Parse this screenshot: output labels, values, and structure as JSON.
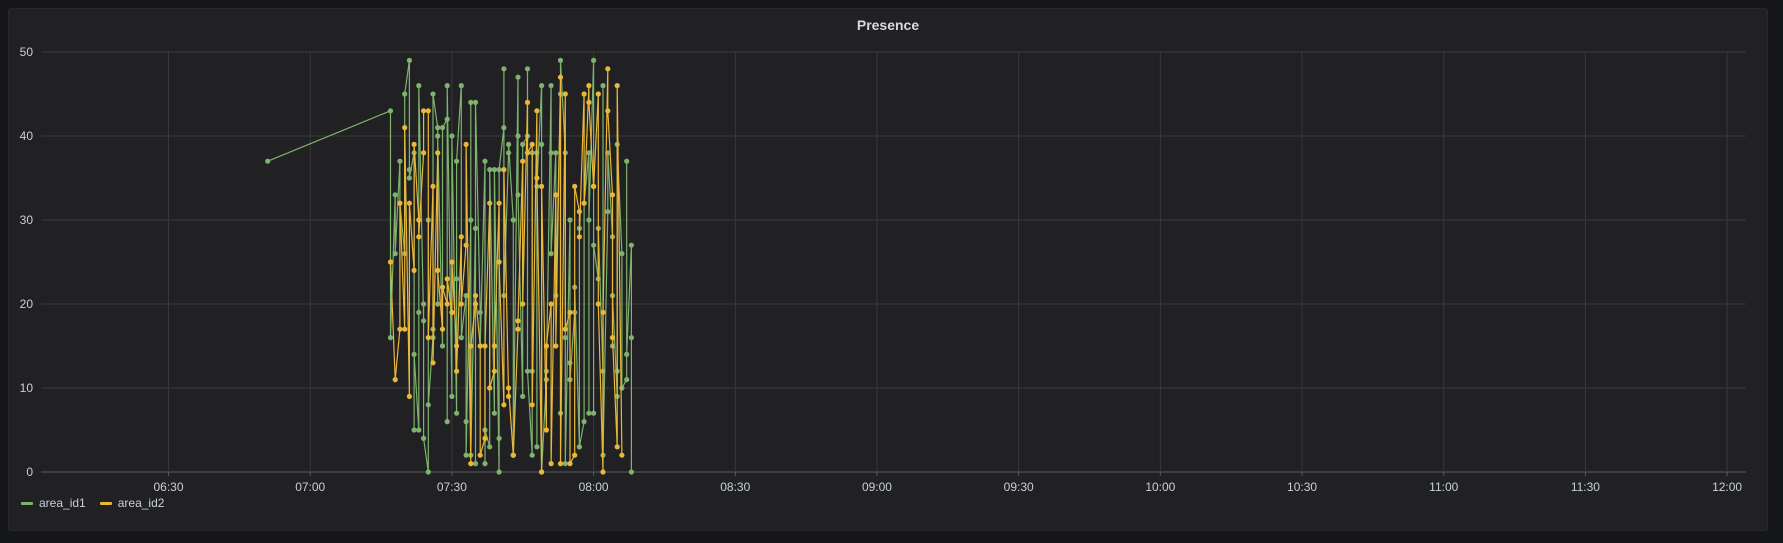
{
  "chart_data": {
    "type": "line",
    "title": "Presence",
    "xlabel": "",
    "ylabel": "",
    "ylim": [
      0,
      50
    ],
    "xlim": [
      "06:03",
      "12:04"
    ],
    "x_ticks": [
      "06:30",
      "07:00",
      "07:30",
      "08:00",
      "08:30",
      "09:00",
      "09:30",
      "10:00",
      "10:30",
      "11:00",
      "11:30",
      "12:00"
    ],
    "y_ticks": [
      "0",
      "10",
      "20",
      "30",
      "40",
      "50"
    ],
    "grid": true,
    "legend_position": "bottom-left",
    "series": [
      {
        "name": "area_id1",
        "color": "#7eb26d",
        "points": [
          [
            "06:51",
            37
          ],
          [
            "07:17",
            43
          ],
          [
            "07:17",
            16
          ],
          [
            "07:18",
            33
          ],
          [
            "07:18",
            26
          ],
          [
            "07:19",
            37
          ],
          [
            "07:19",
            32
          ],
          [
            "07:20",
            26
          ],
          [
            "07:20",
            45
          ],
          [
            "07:21",
            49
          ],
          [
            "07:21",
            36
          ],
          [
            "07:21",
            35
          ],
          [
            "07:22",
            38
          ],
          [
            "07:22",
            5
          ],
          [
            "07:22",
            14
          ],
          [
            "07:23",
            5
          ],
          [
            "07:23",
            19
          ],
          [
            "07:23",
            46
          ],
          [
            "07:24",
            18
          ],
          [
            "07:24",
            20
          ],
          [
            "07:24",
            4
          ],
          [
            "07:25",
            0
          ],
          [
            "07:25",
            30
          ],
          [
            "07:25",
            8
          ],
          [
            "07:26",
            16
          ],
          [
            "07:26",
            17
          ],
          [
            "07:26",
            45
          ],
          [
            "07:27",
            41
          ],
          [
            "07:27",
            20
          ],
          [
            "07:27",
            40
          ],
          [
            "07:28",
            15
          ],
          [
            "07:28",
            41
          ],
          [
            "07:29",
            42
          ],
          [
            "07:29",
            6
          ],
          [
            "07:29",
            46
          ],
          [
            "07:30",
            9
          ],
          [
            "07:30",
            40
          ],
          [
            "07:31",
            7
          ],
          [
            "07:31",
            23
          ],
          [
            "07:31",
            37
          ],
          [
            "07:32",
            46
          ],
          [
            "07:32",
            16
          ],
          [
            "07:33",
            21
          ],
          [
            "07:33",
            6
          ],
          [
            "07:33",
            2
          ],
          [
            "07:34",
            30
          ],
          [
            "07:34",
            44
          ],
          [
            "07:34",
            2
          ],
          [
            "07:35",
            29
          ],
          [
            "07:35",
            1
          ],
          [
            "07:35",
            44
          ],
          [
            "07:36",
            19
          ],
          [
            "07:36",
            15
          ],
          [
            "07:37",
            37
          ],
          [
            "07:37",
            1
          ],
          [
            "07:37",
            5
          ],
          [
            "07:38",
            3
          ],
          [
            "07:38",
            10
          ],
          [
            "07:38",
            36
          ],
          [
            "07:39",
            7
          ],
          [
            "07:39",
            36
          ],
          [
            "07:40",
            0
          ],
          [
            "07:40",
            4
          ],
          [
            "07:40",
            36
          ],
          [
            "07:41",
            41
          ],
          [
            "07:41",
            48
          ],
          [
            "07:41",
            21
          ],
          [
            "07:42",
            38
          ],
          [
            "07:42",
            39
          ],
          [
            "07:43",
            30
          ],
          [
            "07:43",
            2
          ],
          [
            "07:44",
            47
          ],
          [
            "07:44",
            40
          ],
          [
            "07:44",
            33
          ],
          [
            "07:45",
            9
          ],
          [
            "07:45",
            39
          ],
          [
            "07:46",
            40
          ],
          [
            "07:46",
            48
          ],
          [
            "07:46",
            12
          ],
          [
            "07:47",
            2
          ],
          [
            "07:47",
            12
          ],
          [
            "07:47",
            38
          ],
          [
            "07:48",
            38
          ],
          [
            "07:48",
            3
          ],
          [
            "07:48",
            34
          ],
          [
            "07:49",
            46
          ],
          [
            "07:49",
            39
          ],
          [
            "07:49",
            0
          ],
          [
            "07:50",
            11
          ],
          [
            "07:50",
            12
          ],
          [
            "07:51",
            46
          ],
          [
            "07:51",
            38
          ],
          [
            "07:51",
            26
          ],
          [
            "07:52",
            38
          ],
          [
            "07:52",
            21
          ],
          [
            "07:53",
            45
          ],
          [
            "07:53",
            7
          ],
          [
            "07:53",
            49
          ],
          [
            "07:54",
            38
          ],
          [
            "07:54",
            16
          ],
          [
            "07:54",
            1
          ],
          [
            "07:55",
            30
          ],
          [
            "07:55",
            13
          ],
          [
            "07:55",
            11
          ],
          [
            "07:56",
            19
          ],
          [
            "07:56",
            22
          ],
          [
            "07:57",
            3
          ],
          [
            "07:57",
            29
          ],
          [
            "07:57",
            3
          ],
          [
            "07:58",
            6
          ],
          [
            "07:58",
            32
          ],
          [
            "07:59",
            38
          ],
          [
            "07:59",
            7
          ],
          [
            "07:59",
            30
          ],
          [
            "08:00",
            49
          ],
          [
            "08:00",
            7
          ],
          [
            "08:00",
            27
          ],
          [
            "08:01",
            23
          ],
          [
            "08:01",
            29
          ],
          [
            "08:02",
            12
          ],
          [
            "08:02",
            46
          ],
          [
            "08:02",
            2
          ],
          [
            "08:03",
            31
          ],
          [
            "08:03",
            38
          ],
          [
            "08:04",
            28
          ],
          [
            "08:04",
            15
          ],
          [
            "08:04",
            21
          ],
          [
            "08:05",
            9
          ],
          [
            "08:05",
            12
          ],
          [
            "08:05",
            39
          ],
          [
            "08:06",
            26
          ],
          [
            "08:06",
            10
          ],
          [
            "08:07",
            11
          ],
          [
            "08:07",
            37
          ],
          [
            "08:07",
            14
          ],
          [
            "08:08",
            27
          ],
          [
            "08:08",
            16
          ],
          [
            "08:08",
            0
          ]
        ]
      },
      {
        "name": "area_id2",
        "color": "#eab839",
        "points": [
          [
            "07:17",
            25
          ],
          [
            "07:18",
            11
          ],
          [
            "07:19",
            17
          ],
          [
            "07:19",
            32
          ],
          [
            "07:20",
            17
          ],
          [
            "07:20",
            41
          ],
          [
            "07:21",
            9
          ],
          [
            "07:21",
            32
          ],
          [
            "07:22",
            24
          ],
          [
            "07:22",
            39
          ],
          [
            "07:23",
            30
          ],
          [
            "07:23",
            28
          ],
          [
            "07:24",
            38
          ],
          [
            "07:24",
            43
          ],
          [
            "07:25",
            43
          ],
          [
            "07:25",
            16
          ],
          [
            "07:26",
            34
          ],
          [
            "07:26",
            13
          ],
          [
            "07:27",
            38
          ],
          [
            "07:27",
            24
          ],
          [
            "07:28",
            17
          ],
          [
            "07:28",
            22
          ],
          [
            "07:29",
            20
          ],
          [
            "07:29",
            23
          ],
          [
            "07:30",
            19
          ],
          [
            "07:30",
            25
          ],
          [
            "07:31",
            15
          ],
          [
            "07:31",
            12
          ],
          [
            "07:32",
            28
          ],
          [
            "07:32",
            20
          ],
          [
            "07:33",
            27
          ],
          [
            "07:33",
            39
          ],
          [
            "07:34",
            1
          ],
          [
            "07:34",
            15
          ],
          [
            "07:35",
            20
          ],
          [
            "07:35",
            21
          ],
          [
            "07:36",
            15
          ],
          [
            "07:36",
            2
          ],
          [
            "07:37",
            4
          ],
          [
            "07:37",
            15
          ],
          [
            "07:38",
            32
          ],
          [
            "07:38",
            10
          ],
          [
            "07:39",
            12
          ],
          [
            "07:39",
            15
          ],
          [
            "07:40",
            32
          ],
          [
            "07:40",
            25
          ],
          [
            "07:41",
            8
          ],
          [
            "07:41",
            36
          ],
          [
            "07:42",
            9
          ],
          [
            "07:42",
            10
          ],
          [
            "07:43",
            2
          ],
          [
            "07:43",
            2
          ],
          [
            "07:44",
            17
          ],
          [
            "07:44",
            18
          ],
          [
            "07:45",
            37
          ],
          [
            "07:45",
            20
          ],
          [
            "07:46",
            44
          ],
          [
            "07:46",
            38
          ],
          [
            "07:47",
            39
          ],
          [
            "07:47",
            8
          ],
          [
            "07:48",
            43
          ],
          [
            "07:48",
            35
          ],
          [
            "07:49",
            0
          ],
          [
            "07:49",
            34
          ],
          [
            "07:50",
            5
          ],
          [
            "07:50",
            15
          ],
          [
            "07:51",
            20
          ],
          [
            "07:51",
            1
          ],
          [
            "07:52",
            33
          ],
          [
            "07:52",
            15
          ],
          [
            "07:53",
            47
          ],
          [
            "07:53",
            1
          ],
          [
            "07:54",
            45
          ],
          [
            "07:54",
            17
          ],
          [
            "07:55",
            19
          ],
          [
            "07:55",
            1
          ],
          [
            "07:56",
            2
          ],
          [
            "07:56",
            34
          ],
          [
            "07:57",
            31
          ],
          [
            "07:57",
            28
          ],
          [
            "07:58",
            45
          ],
          [
            "07:58",
            32
          ],
          [
            "07:59",
            46
          ],
          [
            "07:59",
            44
          ],
          [
            "08:00",
            34
          ],
          [
            "08:00",
            34
          ],
          [
            "08:01",
            45
          ],
          [
            "08:01",
            20
          ],
          [
            "08:02",
            0
          ],
          [
            "08:02",
            19
          ],
          [
            "08:03",
            48
          ],
          [
            "08:03",
            43
          ],
          [
            "08:04",
            33
          ],
          [
            "08:04",
            16
          ],
          [
            "08:05",
            3
          ],
          [
            "08:05",
            46
          ],
          [
            "08:06",
            2
          ]
        ]
      }
    ]
  }
}
